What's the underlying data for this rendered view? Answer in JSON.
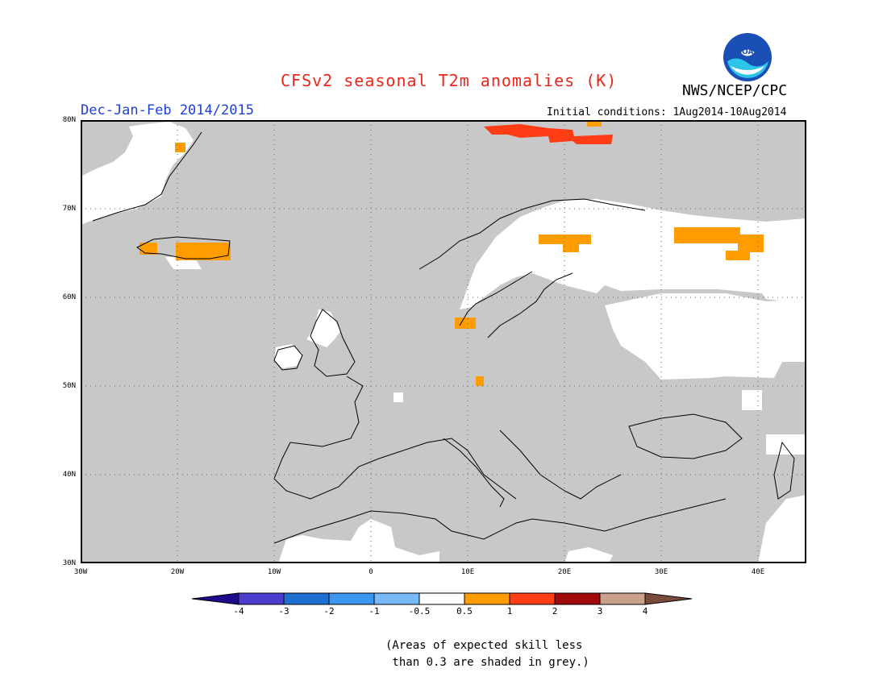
{
  "title": "CFSv2 seasonal T2m anomalies (K)",
  "agency": "NWS/NCEP/CPC",
  "logo_text": "NOAA",
  "season_label": "Dec-Jan-Feb 2014/2015",
  "initial_conditions": "Initial conditions: 1Aug2014-10Aug2014",
  "map": {
    "lon_range": [
      -30,
      45
    ],
    "lat_range": [
      30,
      80
    ],
    "lat_labels": [
      "80N",
      "70N",
      "60N",
      "50N",
      "40N",
      "30N"
    ],
    "lon_labels": [
      "30W",
      "20W",
      "10W",
      "0",
      "10E",
      "20E",
      "30E",
      "40E"
    ],
    "colors": {
      "grey_low_skill": "#c8c8c8",
      "anomaly_0_5_to_1": "#ff9c00",
      "anomaly_1_to_2": "#ff3c14"
    }
  },
  "colorbar": {
    "tick_labels": [
      "-4",
      "-3",
      "-2",
      "-1",
      "-0.5",
      "0.5",
      "1",
      "2",
      "3",
      "4"
    ],
    "colors": [
      "#1e0a8c",
      "#4b3ccd",
      "#1f6fd2",
      "#3c96f0",
      "#78b9fa",
      "#ffffff",
      "#ff9c00",
      "#ff3c14",
      "#a00a0a",
      "#c8a08c",
      "#7a4a3a"
    ]
  },
  "note": "(Areas of expected skill less\n than 0.3 are shaded in grey.)"
}
